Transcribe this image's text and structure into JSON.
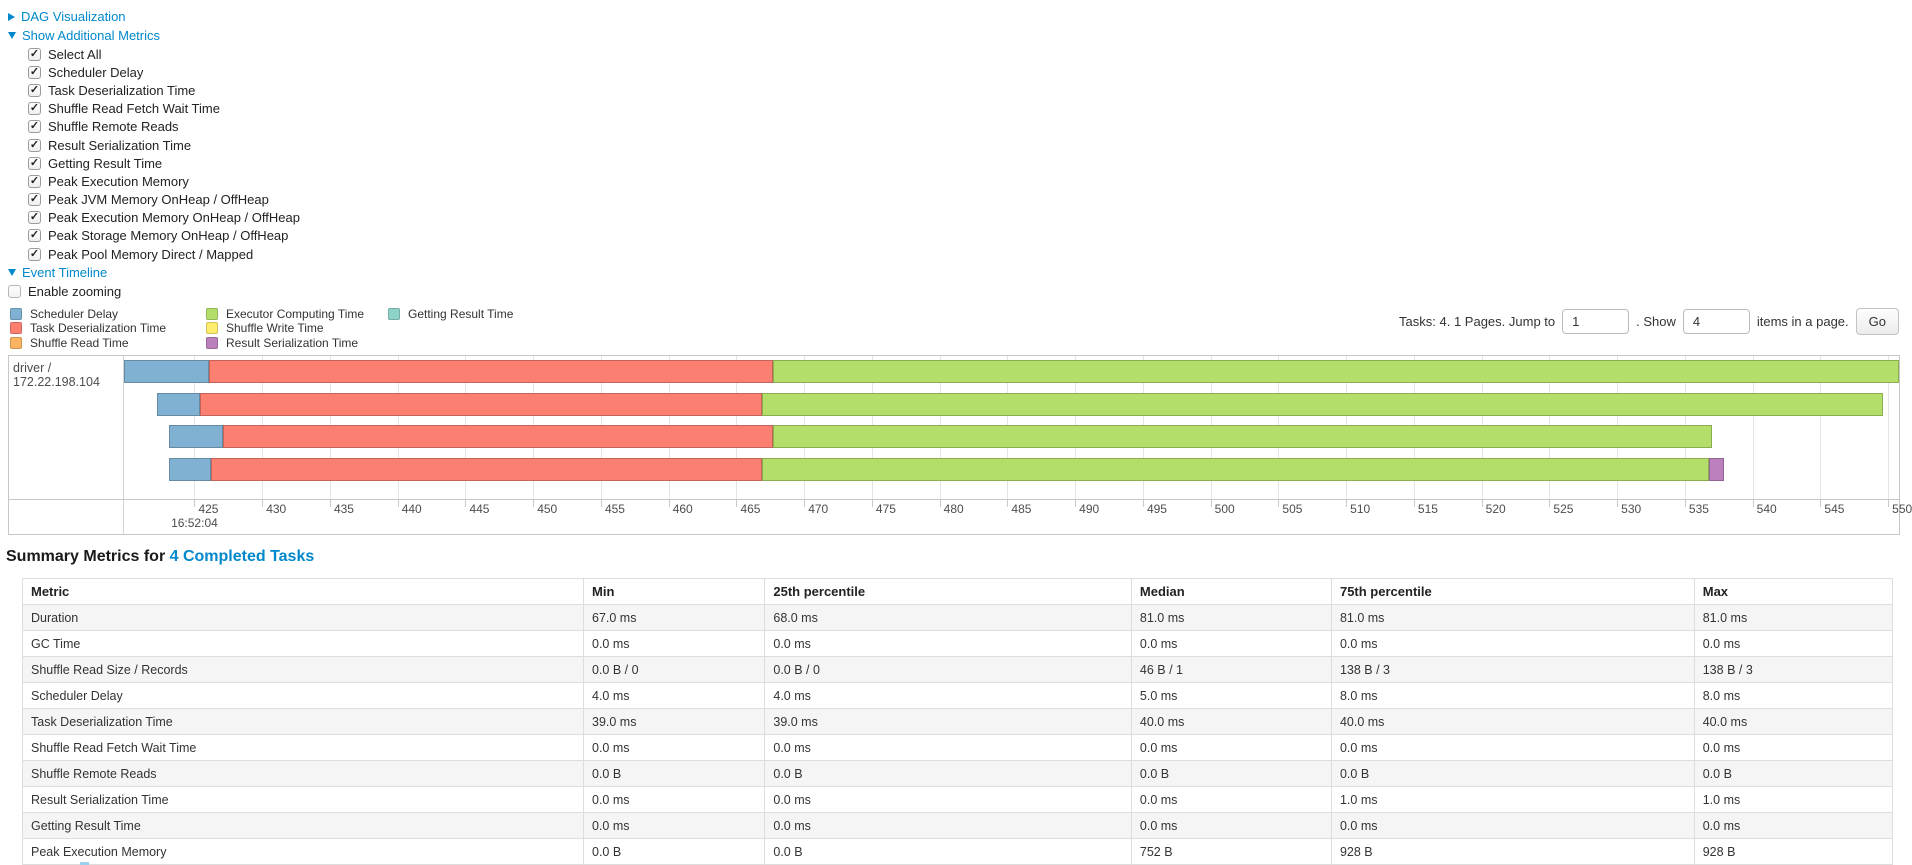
{
  "toggles": {
    "dag": "DAG Visualization",
    "additional_metrics": "Show Additional Metrics",
    "event_timeline": "Event Timeline"
  },
  "additional_metrics": {
    "items": [
      "Select All",
      "Scheduler Delay",
      "Task Deserialization Time",
      "Shuffle Read Fetch Wait Time",
      "Shuffle Remote Reads",
      "Result Serialization Time",
      "Getting Result Time",
      "Peak Execution Memory",
      "Peak JVM Memory OnHeap / OffHeap",
      "Peak Execution Memory OnHeap / OffHeap",
      "Peak Storage Memory OnHeap / OffHeap",
      "Peak Pool Memory Direct / Mapped"
    ]
  },
  "enable_zooming_label": "Enable zooming",
  "legend": {
    "columns": [
      [
        {
          "key": "scheduler",
          "label": "Scheduler Delay"
        },
        {
          "key": "deser",
          "label": "Task Deserialization Time"
        },
        {
          "key": "shuffle_read",
          "label": "Shuffle Read Time"
        }
      ],
      [
        {
          "key": "compute",
          "label": "Executor Computing Time"
        },
        {
          "key": "shuffle_write",
          "label": "Shuffle Write Time"
        },
        {
          "key": "result_ser",
          "label": "Result Serialization Time"
        }
      ],
      [
        {
          "key": "get_result",
          "label": "Getting Result Time"
        }
      ]
    ]
  },
  "pagination": {
    "text_before": "Tasks: 4. 1 Pages. Jump to",
    "jump_value": "1",
    "text_mid": ". Show",
    "show_value": "4",
    "text_after": "items in a page.",
    "go_label": "Go"
  },
  "chart_data": {
    "type": "timeline",
    "group_label": "driver / 172.22.198.104",
    "colors": {
      "scheduler": "#80B1D3",
      "deser": "#FB8072",
      "shuffle_read": "#FDB462",
      "compute": "#B3DE69",
      "shuffle_write": "#FFED6F",
      "result_ser": "#BC80BD",
      "get_result": "#8DD3C7"
    },
    "axis": {
      "min": 419.8,
      "max": 550.8,
      "tick_start": 425,
      "tick_step": 5,
      "tick_end": 550,
      "unit": "ms within second",
      "first_tick_sublabel": "16:52:04"
    },
    "tasks": [
      {
        "segments": [
          {
            "type": "scheduler",
            "start": 419.8,
            "end": 426.1
          },
          {
            "type": "deser",
            "start": 426.1,
            "end": 467.7
          },
          {
            "type": "compute",
            "start": 467.7,
            "end": 550.8
          }
        ]
      },
      {
        "segments": [
          {
            "type": "scheduler",
            "start": 422.2,
            "end": 425.4
          },
          {
            "type": "deser",
            "start": 425.4,
            "end": 466.9
          },
          {
            "type": "compute",
            "start": 466.9,
            "end": 549.6
          }
        ]
      },
      {
        "segments": [
          {
            "type": "scheduler",
            "start": 423.1,
            "end": 427.1
          },
          {
            "type": "deser",
            "start": 427.1,
            "end": 467.7
          },
          {
            "type": "compute",
            "start": 467.7,
            "end": 537.0
          }
        ]
      },
      {
        "segments": [
          {
            "type": "scheduler",
            "start": 423.1,
            "end": 426.2
          },
          {
            "type": "deser",
            "start": 426.2,
            "end": 466.9
          },
          {
            "type": "compute",
            "start": 466.9,
            "end": 536.8
          },
          {
            "type": "result_ser",
            "start": 536.8,
            "end": 537.9
          }
        ]
      }
    ]
  },
  "summary": {
    "heading_prefix": "Summary Metrics for ",
    "heading_link": "4 Completed Tasks",
    "columns": [
      "Metric",
      "Min",
      "25th percentile",
      "Median",
      "75th percentile",
      "Max"
    ],
    "col_widths": [
      "30%",
      "9.7%",
      "19.6%",
      "10.7%",
      "19.4%",
      "10.6%"
    ],
    "rows": [
      [
        "Duration",
        "67.0 ms",
        "68.0 ms",
        "81.0 ms",
        "81.0 ms",
        "81.0 ms"
      ],
      [
        "GC Time",
        "0.0 ms",
        "0.0 ms",
        "0.0 ms",
        "0.0 ms",
        "0.0 ms"
      ],
      [
        "Shuffle Read Size / Records",
        "0.0 B / 0",
        "0.0 B / 0",
        "46 B / 1",
        "138 B / 3",
        "138 B / 3"
      ],
      [
        "Scheduler Delay",
        "4.0 ms",
        "4.0 ms",
        "5.0 ms",
        "8.0 ms",
        "8.0 ms"
      ],
      [
        "Task Deserialization Time",
        "39.0 ms",
        "39.0 ms",
        "40.0 ms",
        "40.0 ms",
        "40.0 ms"
      ],
      [
        "Shuffle Read Fetch Wait Time",
        "0.0 ms",
        "0.0 ms",
        "0.0 ms",
        "0.0 ms",
        "0.0 ms"
      ],
      [
        "Shuffle Remote Reads",
        "0.0 B",
        "0.0 B",
        "0.0 B",
        "0.0 B",
        "0.0 B"
      ],
      [
        "Result Serialization Time",
        "0.0 ms",
        "0.0 ms",
        "0.0 ms",
        "1.0 ms",
        "1.0 ms"
      ],
      [
        "Getting Result Time",
        "0.0 ms",
        "0.0 ms",
        "0.0 ms",
        "0.0 ms",
        "0.0 ms"
      ],
      [
        "Peak Execution Memory",
        "0.0 B",
        "0.0 B",
        "752 B",
        "928 B",
        "928 B"
      ]
    ]
  }
}
